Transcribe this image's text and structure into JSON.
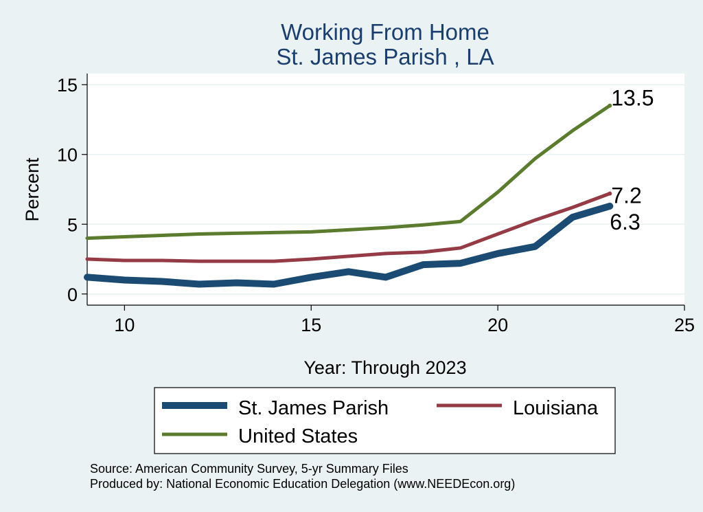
{
  "chart_data": {
    "type": "line",
    "title": "Working From Home",
    "subtitle": "St. James Parish , LA",
    "xlabel": "Year: Through 2023",
    "ylabel": "Percent",
    "xlim": [
      9,
      25
    ],
    "ylim": [
      -0.8,
      15.8
    ],
    "xticks": [
      10,
      15,
      20,
      25
    ],
    "yticks": [
      0,
      5,
      10,
      15
    ],
    "grid": true,
    "x": [
      9,
      10,
      11,
      12,
      13,
      14,
      15,
      16,
      17,
      18,
      19,
      20,
      21,
      22,
      23
    ],
    "series": [
      {
        "name": "St. James Parish",
        "color": "#1b4b72",
        "values": [
          1.2,
          1.0,
          0.9,
          0.7,
          0.8,
          0.7,
          1.2,
          1.6,
          1.2,
          2.1,
          2.2,
          2.9,
          3.4,
          5.5,
          6.3
        ],
        "end_label": "6.3"
      },
      {
        "name": "Louisiana",
        "color": "#943b45",
        "values": [
          2.5,
          2.4,
          2.4,
          2.35,
          2.35,
          2.35,
          2.5,
          2.7,
          2.9,
          3.0,
          3.3,
          4.3,
          5.3,
          6.2,
          7.2
        ],
        "end_label": "7.2"
      },
      {
        "name": "United States",
        "color": "#5b7c2e",
        "values": [
          4.0,
          4.1,
          4.2,
          4.3,
          4.35,
          4.4,
          4.45,
          4.6,
          4.75,
          4.95,
          5.2,
          7.3,
          9.7,
          11.7,
          13.5
        ],
        "end_label": "13.5"
      }
    ],
    "legend_position": "bottom"
  },
  "legend": {
    "items": [
      "St. James Parish",
      "Louisiana",
      "United States"
    ]
  },
  "source": {
    "line1": "Source: American Community Survey, 5-yr Summary Files",
    "line2": "Produced by: National Economic Education Delegation (www.NEEDEcon.org)"
  }
}
